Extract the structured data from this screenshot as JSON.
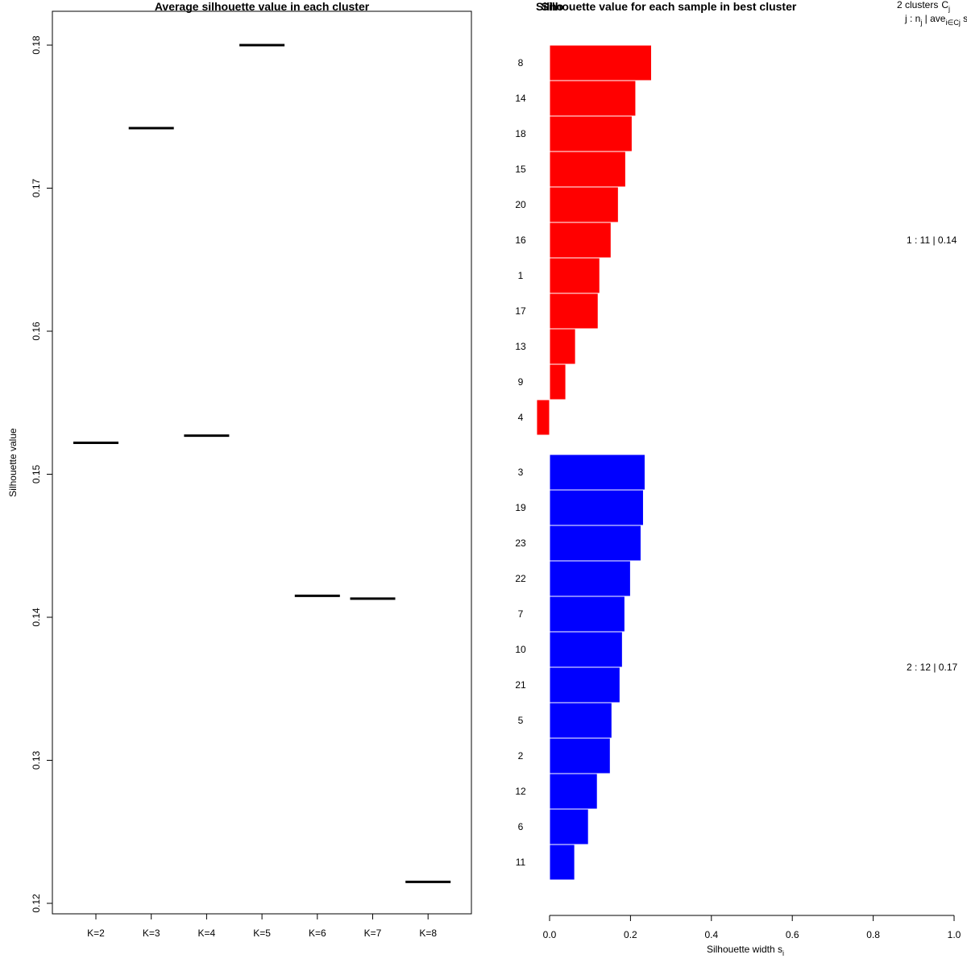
{
  "chart_data": [
    {
      "type": "dot-segment",
      "title": "Average silhouette value in each cluster",
      "xlabel": "",
      "ylabel": "Silhouette value",
      "ylim": [
        0.12,
        0.18
      ],
      "yticks": [
        "0.12",
        "0.13",
        "0.14",
        "0.15",
        "0.16",
        "0.17",
        "0.18"
      ],
      "ytick_values": [
        0.12,
        0.13,
        0.14,
        0.15,
        0.16,
        0.17,
        0.18
      ],
      "categories": [
        "K=2",
        "K=3",
        "K=4",
        "K=5",
        "K=6",
        "K=7",
        "K=8"
      ],
      "values": [
        0.1522,
        0.1742,
        0.1527,
        0.18,
        0.1415,
        0.1413,
        0.1215
      ],
      "grid": false
    },
    {
      "type": "bar",
      "orientation": "horizontal",
      "title_overlap": "Silho",
      "title": "Silhouette value for each sample in best cluster",
      "xlabel": "Silhouette width s",
      "xlabel_sub": "i",
      "xlim": [
        0.0,
        1.0
      ],
      "xticks": [
        "0.0",
        "0.2",
        "0.4",
        "0.6",
        "0.8",
        "1.0"
      ],
      "xtick_values": [
        0.0,
        0.2,
        0.4,
        0.6,
        0.8,
        1.0
      ],
      "legend": {
        "header_count": "2 clusters",
        "header_symbol": "C",
        "header_symbol_sub": "j",
        "row2_prefix": "j :  n",
        "row2_n_sub": "j",
        "row2_mid": " | ave",
        "row2_ave_sub": "i∈Cj",
        "row2_suffix": " s"
      },
      "clusters": [
        {
          "name": "1",
          "color": "#ff0000",
          "summary": "1 :  11  |  0.14",
          "samples": [
            "8",
            "14",
            "18",
            "15",
            "20",
            "16",
            "1",
            "17",
            "13",
            "9",
            "4"
          ],
          "values": [
            0.252,
            0.213,
            0.204,
            0.188,
            0.17,
            0.152,
            0.124,
            0.12,
            0.064,
            0.04,
            -0.032
          ]
        },
        {
          "name": "2",
          "color": "#0000ff",
          "summary": "2 :  12  |  0.17",
          "samples": [
            "3",
            "19",
            "23",
            "22",
            "7",
            "10",
            "21",
            "5",
            "2",
            "12",
            "6",
            "11"
          ],
          "values": [
            0.236,
            0.232,
            0.226,
            0.2,
            0.186,
            0.18,
            0.174,
            0.154,
            0.15,
            0.118,
            0.096,
            0.062
          ]
        }
      ]
    }
  ]
}
